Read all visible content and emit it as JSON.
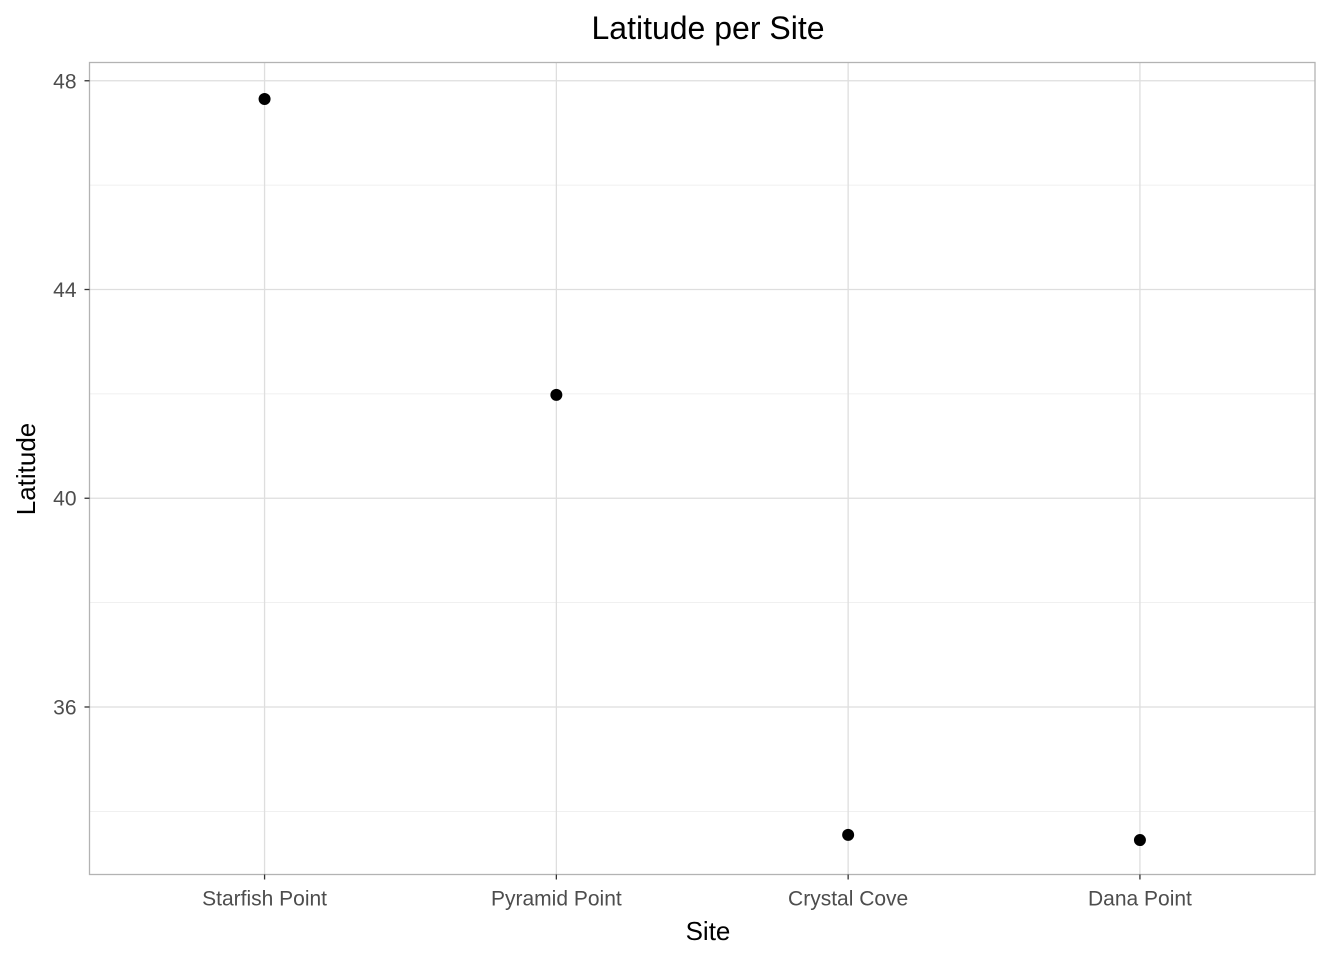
{
  "chart_data": {
    "type": "scatter",
    "title": "Latitude per Site",
    "xlabel": "Site",
    "ylabel": "Latitude",
    "categories": [
      "Starfish Point",
      "Pyramid Point",
      "Crystal Cove",
      "Dana Point"
    ],
    "values": [
      47.65,
      41.98,
      33.55,
      33.45
    ],
    "ylim": [
      32.79,
      48.35
    ],
    "yticks": [
      36,
      40,
      44,
      48
    ],
    "yminor": [
      34,
      38,
      42,
      46
    ],
    "grid": true,
    "point_color": "#000000"
  }
}
